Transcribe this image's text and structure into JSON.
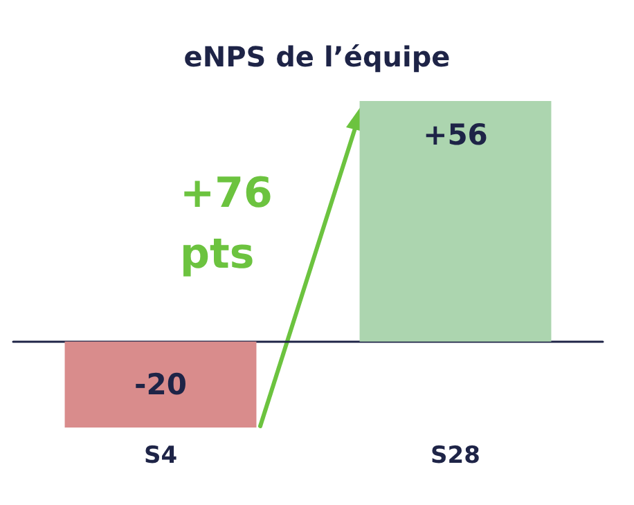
{
  "chart_data": {
    "type": "bar",
    "title": "eNPS de l’équipe",
    "categories": [
      "S4",
      "S28"
    ],
    "values": [
      -20,
      56
    ],
    "colors": [
      "#d98c8c",
      "#acd5af"
    ],
    "value_labels": [
      "-20",
      "+56"
    ],
    "annotations": [
      "+76\npts"
    ]
  }
}
